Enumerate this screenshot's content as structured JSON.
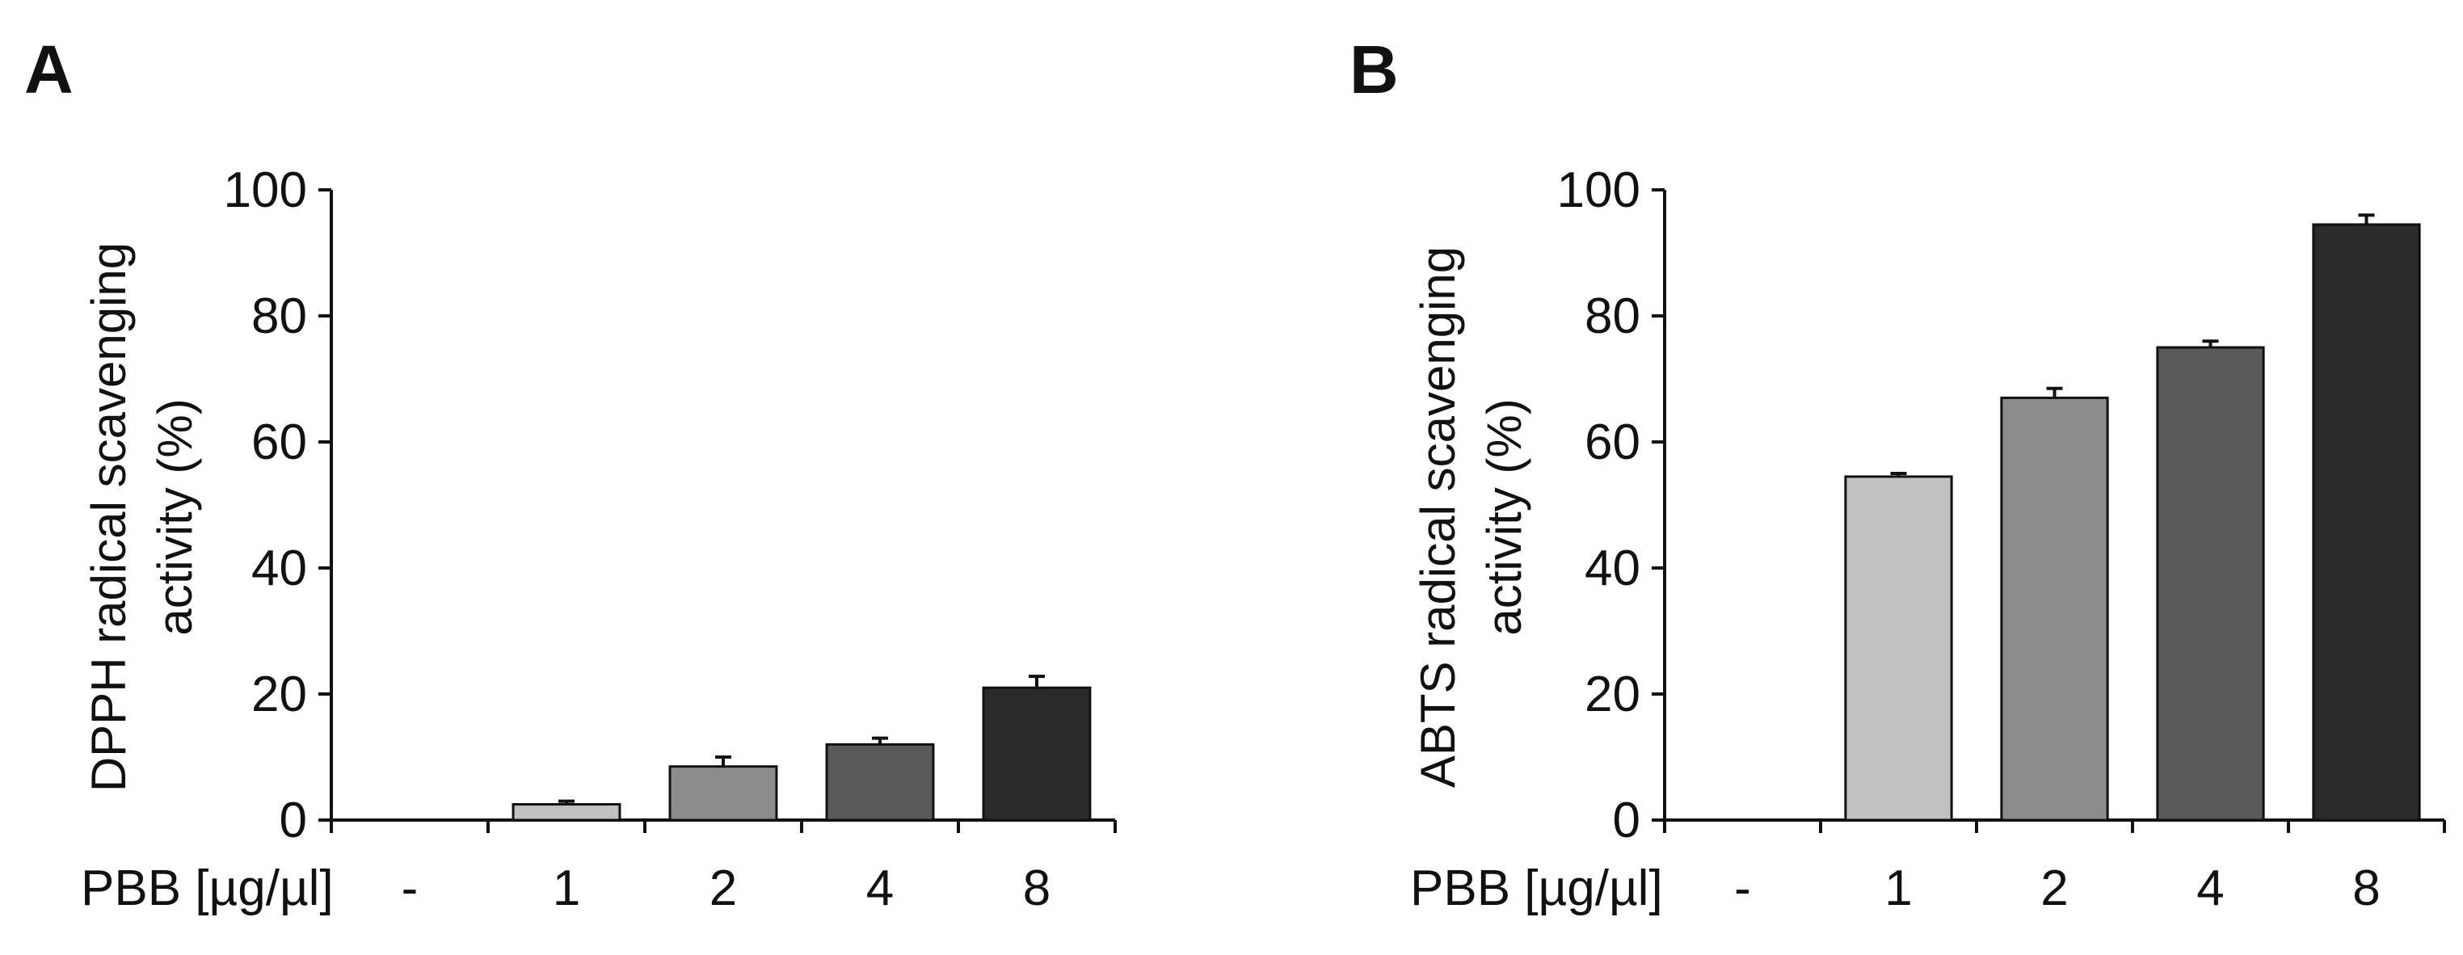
{
  "panels": [
    {
      "letter": "A"
    },
    {
      "letter": "B"
    }
  ],
  "chart_data": [
    {
      "type": "bar",
      "panel": "A",
      "ylabel_line1": "DPPH radical scavenging",
      "ylabel_line2": "activity (%)",
      "xlabel": "PBB [µg/µl]",
      "categories": [
        "-",
        "1",
        "2",
        "4",
        "8"
      ],
      "values": [
        0,
        2.5,
        8.5,
        12,
        21
      ],
      "errors": [
        0,
        0.5,
        1.5,
        1,
        1.8
      ],
      "bar_colors": [
        "#ffffff",
        "#c0c0c0",
        "#8c8c8c",
        "#595959",
        "#2a2a2a"
      ],
      "ylim": [
        0,
        100
      ],
      "yticks": [
        0,
        20,
        40,
        60,
        80,
        100
      ]
    },
    {
      "type": "bar",
      "panel": "B",
      "ylabel_line1": "ABTS radical scavenging",
      "ylabel_line2": "activity (%)",
      "xlabel": "PBB [µg/µl]",
      "categories": [
        "-",
        "1",
        "2",
        "4",
        "8"
      ],
      "values": [
        0,
        54.5,
        67,
        75,
        94.5
      ],
      "errors": [
        0,
        0.5,
        1.5,
        1,
        1.5
      ],
      "bar_colors": [
        "#ffffff",
        "#c0c0c0",
        "#8c8c8c",
        "#595959",
        "#2a2a2a"
      ],
      "ylim": [
        0,
        100
      ],
      "yticks": [
        0,
        20,
        40,
        60,
        80,
        100
      ]
    }
  ]
}
